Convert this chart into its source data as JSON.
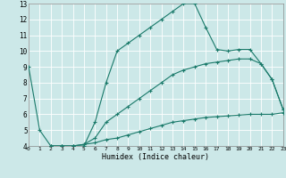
{
  "xlabel": "Humidex (Indice chaleur)",
  "background_color": "#cce8e8",
  "line_color": "#1a7a6a",
  "xlim": [
    0,
    23
  ],
  "ylim": [
    4,
    13
  ],
  "xticks": [
    0,
    1,
    2,
    3,
    4,
    5,
    6,
    7,
    8,
    9,
    10,
    11,
    12,
    13,
    14,
    15,
    16,
    17,
    18,
    19,
    20,
    21,
    22,
    23
  ],
  "yticks": [
    4,
    5,
    6,
    7,
    8,
    9,
    10,
    11,
    12,
    13
  ],
  "line1_x": [
    0,
    1,
    2,
    3,
    4,
    5,
    6,
    7,
    8,
    9,
    10,
    11,
    12,
    13,
    14,
    15,
    16,
    17,
    18,
    19,
    20,
    21,
    22,
    23
  ],
  "line1_y": [
    9,
    5,
    4,
    4,
    4,
    4,
    5.5,
    8,
    10,
    10.5,
    11,
    11.5,
    12,
    12.5,
    13,
    13,
    11.5,
    10.1,
    10,
    10.1,
    10.1,
    9.2,
    8.2,
    6.3
  ],
  "line2_x": [
    2,
    3,
    4,
    5,
    6,
    7,
    8,
    9,
    10,
    11,
    12,
    13,
    14,
    15,
    16,
    17,
    18,
    19,
    20,
    21,
    22,
    23
  ],
  "line2_y": [
    4,
    4,
    4,
    4.1,
    4.5,
    5.5,
    6.0,
    6.5,
    7.0,
    7.5,
    8.0,
    8.5,
    8.8,
    9.0,
    9.2,
    9.3,
    9.4,
    9.5,
    9.5,
    9.2,
    8.2,
    6.3
  ],
  "line3_x": [
    2,
    3,
    4,
    5,
    6,
    7,
    8,
    9,
    10,
    11,
    12,
    13,
    14,
    15,
    16,
    17,
    18,
    19,
    20,
    21,
    22,
    23
  ],
  "line3_y": [
    4,
    4,
    4,
    4.1,
    4.2,
    4.4,
    4.5,
    4.7,
    4.9,
    5.1,
    5.3,
    5.5,
    5.6,
    5.7,
    5.8,
    5.85,
    5.9,
    5.95,
    6.0,
    6.0,
    6.0,
    6.1
  ]
}
